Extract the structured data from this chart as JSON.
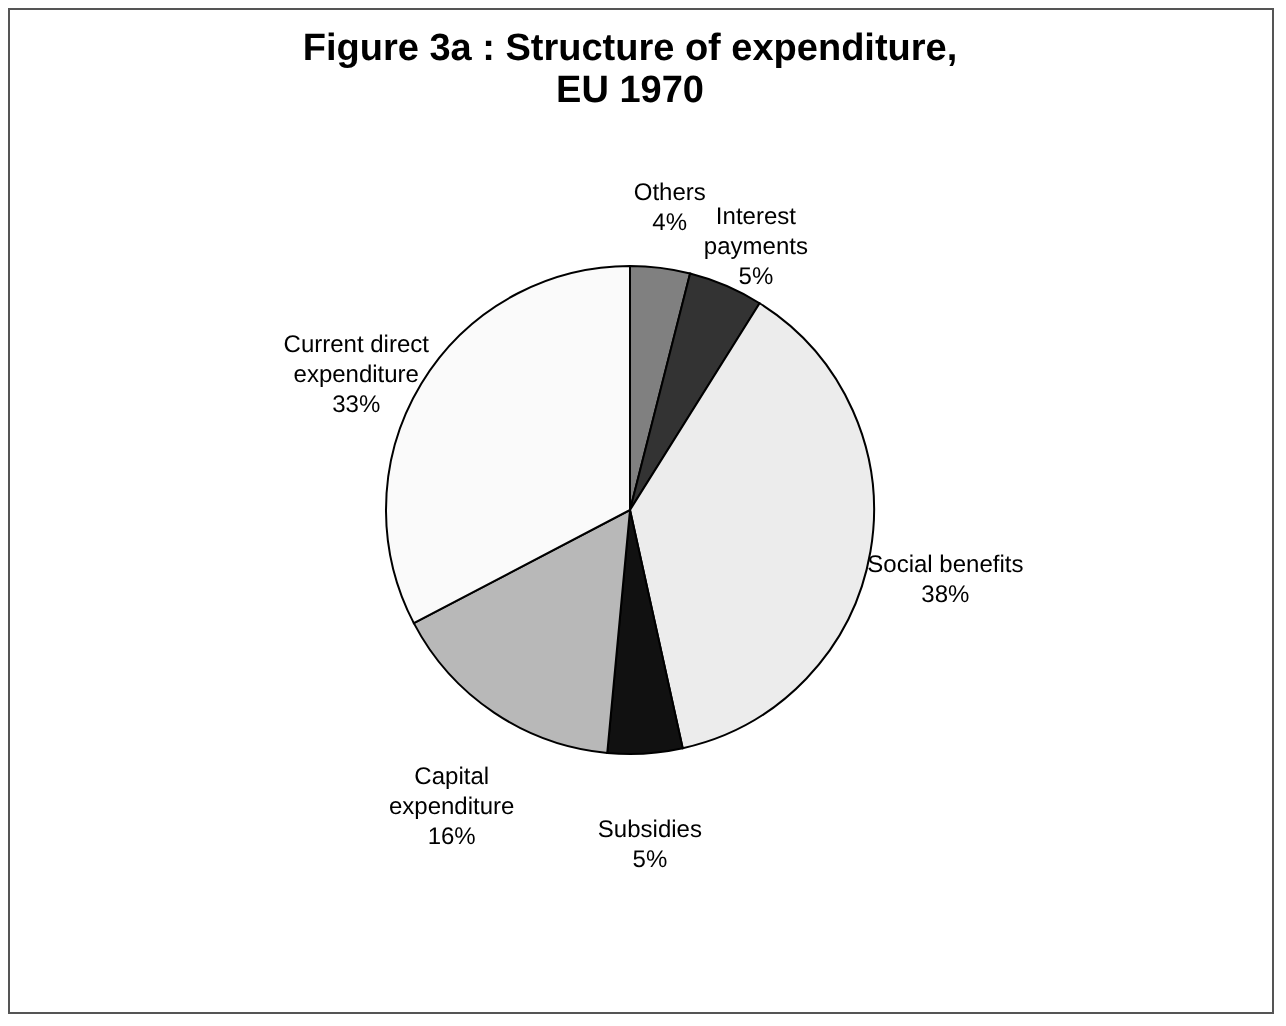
{
  "chart_data": {
    "type": "pie",
    "title": [
      "Figure 3a : Structure of expenditure,",
      "EU 1970"
    ],
    "categories": [
      "Others",
      "Interest payments",
      "Social benefits",
      "Subsidies",
      "Capital expenditure",
      "Current direct expenditure"
    ],
    "values": [
      4,
      5,
      38,
      5,
      16,
      33
    ],
    "value_labels": [
      "4%",
      "5%",
      "38%",
      "5%",
      "16%",
      "33%"
    ],
    "colors": [
      "#808080",
      "#333333",
      "#ececec",
      "#111111",
      "#b8b8b8",
      "#fafafa"
    ],
    "legend": false
  }
}
